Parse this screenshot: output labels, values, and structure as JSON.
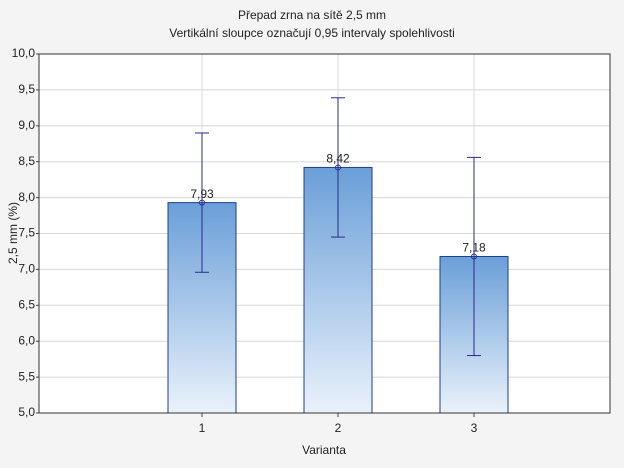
{
  "chart_data": {
    "type": "bar",
    "title": "Přepad zrna na sítě 2,5 mm",
    "subtitle": "Vertikální sloupce označují 0,95 intervaly spolehlivosti",
    "x_label": "Varianta",
    "y_label": "2,5 mm (%)",
    "categories": [
      "1",
      "2",
      "3"
    ],
    "values": [
      7.93,
      8.42,
      7.18
    ],
    "value_labels": [
      "7,93",
      "8,42",
      "7,18"
    ],
    "errors": [
      0.97,
      0.97,
      1.38
    ],
    "color": "#6a9fd8",
    "edge_color": "#1f3d8c",
    "error_color": "#2a2a8c",
    "ylim": [
      5,
      10
    ],
    "yticks": [
      {
        "value": 5,
        "label": "5,0"
      },
      {
        "value": 5.5,
        "label": "5,5"
      },
      {
        "value": 6,
        "label": "6,0"
      },
      {
        "value": 6.5,
        "label": "6,5"
      },
      {
        "value": 7,
        "label": "7,0"
      },
      {
        "value": 7.5,
        "label": "7,5"
      },
      {
        "value": 8,
        "label": "8,0"
      },
      {
        "value": 8.5,
        "label": "8,5"
      },
      {
        "value": 9,
        "label": "9,0"
      },
      {
        "value": 9.5,
        "label": "9,5"
      },
      {
        "value": 10,
        "label": "10,0"
      }
    ],
    "grid": true
  }
}
